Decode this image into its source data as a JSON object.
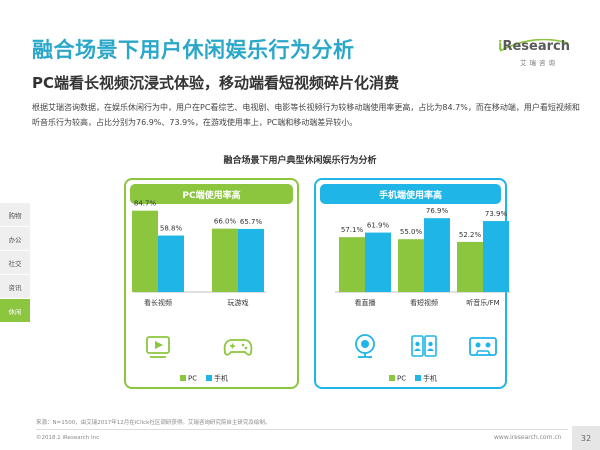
{
  "header": {
    "title": "融合场景下用户休闲娱乐行为分析",
    "subtitle": "PC端看长视频沉浸式体验，移动端看短视频碎片化消费",
    "body": "根据艾瑞咨询数据，在娱乐休闲行为中，用户在PC看综艺、电视剧、电影等长视频行为较移动端使用率更高，占比为84.7%，而在移动端，用户看短视频和听音乐行为较高，占比分别为76.9%、73.9%，在游戏使用率上，PC端和移动端差异较小。"
  },
  "logo": {
    "wordmark_i": "i",
    "wordmark_rest": "Research",
    "cn": "艾瑞咨询"
  },
  "side_nav": {
    "items": [
      {
        "label": "购物",
        "active": false
      },
      {
        "label": "办公",
        "active": false
      },
      {
        "label": "社交",
        "active": false
      },
      {
        "label": "资讯",
        "active": false
      },
      {
        "label": "休闲",
        "active": true
      }
    ]
  },
  "chart_title": "融合场景下用户典型休闲娱乐行为分析",
  "panels": {
    "pc": {
      "header": "PC端使用率高"
    },
    "mobile": {
      "header": "手机端使用率高"
    }
  },
  "chart_data": {
    "type": "bar",
    "title": "融合场景下用户典型休闲娱乐行为分析",
    "categories": [
      "看长视频",
      "玩游戏",
      "看直播",
      "看短视频",
      "听音乐/FM"
    ],
    "series": [
      {
        "name": "PC",
        "color": "#8cc63f",
        "values": [
          84.7,
          66.0,
          57.1,
          55.0,
          52.2
        ]
      },
      {
        "name": "手机",
        "color": "#1fb5e6",
        "values": [
          58.8,
          65.7,
          61.9,
          76.9,
          73.9
        ]
      }
    ],
    "value_labels_pc": [
      "84.7%",
      "66.0%",
      "57.1%",
      "55.0%",
      "52.2%"
    ],
    "value_labels_mobile": [
      "58.8%",
      "65.7%",
      "61.9%",
      "76.9%",
      "73.9%"
    ],
    "groups": [
      {
        "panel": "PC端使用率高",
        "categories": [
          "看长视频",
          "玩游戏"
        ]
      },
      {
        "panel": "手机端使用率高",
        "categories": [
          "看直播",
          "看短视频",
          "听音乐/FM"
        ]
      }
    ],
    "icons": [
      "video-play-icon",
      "gamepad-icon",
      "webcam-icon",
      "phone-video-icon",
      "cassette-icon"
    ],
    "legend": [
      "PC",
      "手机"
    ],
    "legend_position": "bottom",
    "grid": false,
    "ylim": [
      0,
      100
    ]
  },
  "footer": {
    "source": "来源：N=1500，由艾瑞2017年12月在iClick社区调研获得。艾瑞咨询研究院自主研究及绘制。",
    "copyright": "©2018.1 iResearch Inc",
    "url": "www.iresearch.com.cn",
    "page": "32"
  }
}
